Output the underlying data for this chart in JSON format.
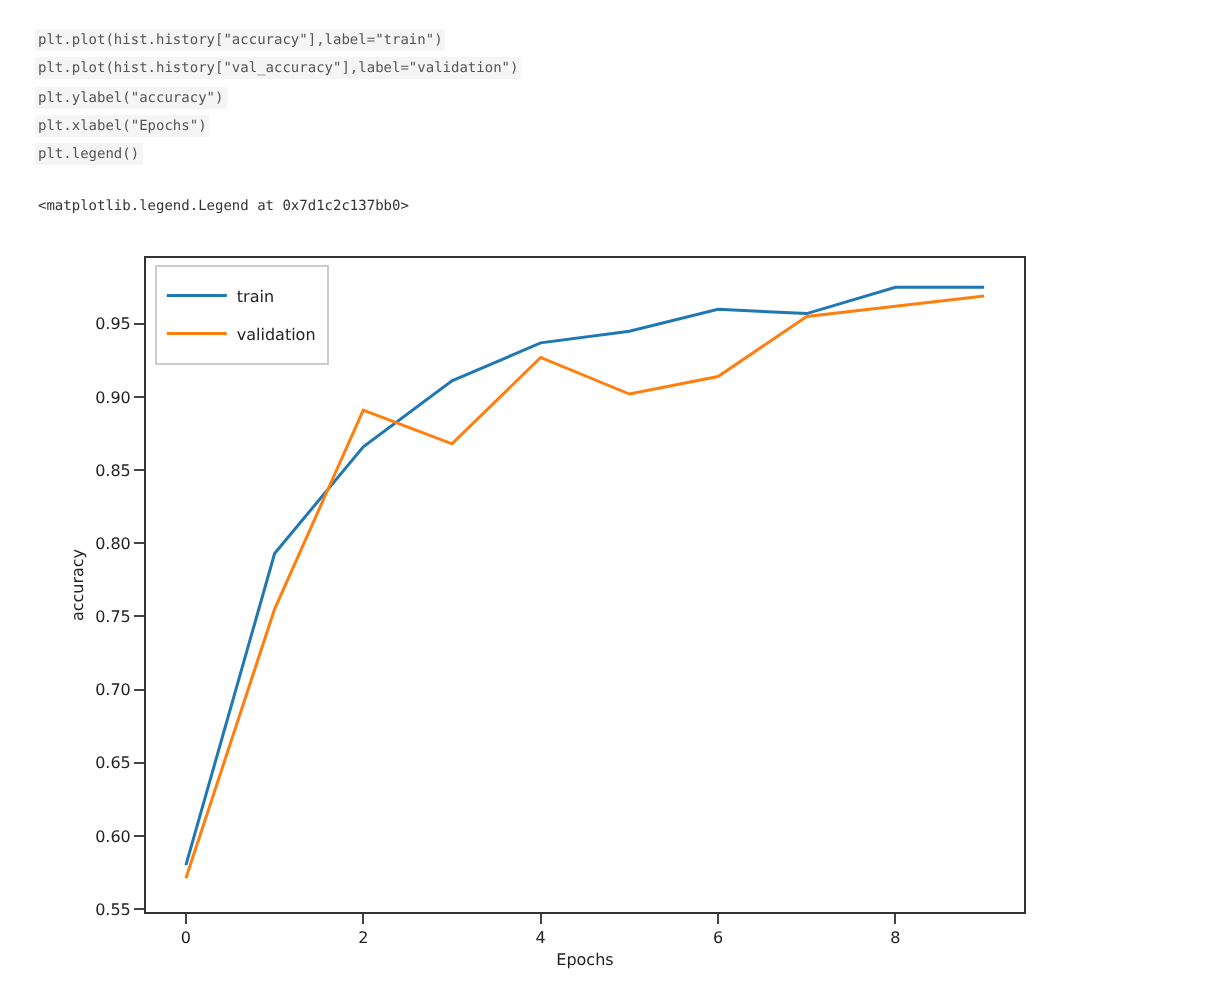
{
  "chart_data": {
    "type": "line",
    "xlabel": "Epochs",
    "ylabel": "accuracy",
    "annotations": [
      "plt.plot(hist.history[\"accuracy\"],label=\"train\")",
      "plt.plot(hist.history[\"val_accuracy\"],label=\"validation\")",
      "plt.ylabel(\"accuracy\")",
      "plt.xlabel(\"Epochs\")",
      "plt.legend()",
      "<matplotlib.legend.Legend at 0x7d1c2c137bb0>"
    ],
    "x": [
      0,
      1,
      2,
      3,
      4,
      5,
      6,
      7,
      8,
      9
    ],
    "series": [
      {
        "name": "train",
        "color": "#1f77b4",
        "values": [
          0.58,
          0.793,
          0.866,
          0.911,
          0.937,
          0.945,
          0.96,
          0.957,
          0.975,
          0.975
        ]
      },
      {
        "name": "validation",
        "color": "#ff7f0e",
        "values": [
          0.571,
          0.755,
          0.891,
          0.868,
          0.927,
          0.902,
          0.914,
          0.955,
          0.962,
          0.969
        ]
      }
    ],
    "xlim": [
      -0.45,
      9.45
    ],
    "xticks": [
      0,
      2,
      4,
      6,
      8
    ],
    "ylim": [
      0.548,
      0.995
    ],
    "yticks": [
      0.55,
      {
        "value": 0.6,
        "label": "0.60"
      },
      0.65,
      {
        "value": 0.7,
        "label": "0.70"
      },
      0.75,
      {
        "value": 0.8,
        "label": "0.80"
      },
      0.85,
      {
        "value": 0.9,
        "label": "0.90"
      },
      0.95
    ],
    "grid": false,
    "legend": "top left",
    "marker": "none",
    "line_style": "solid"
  }
}
